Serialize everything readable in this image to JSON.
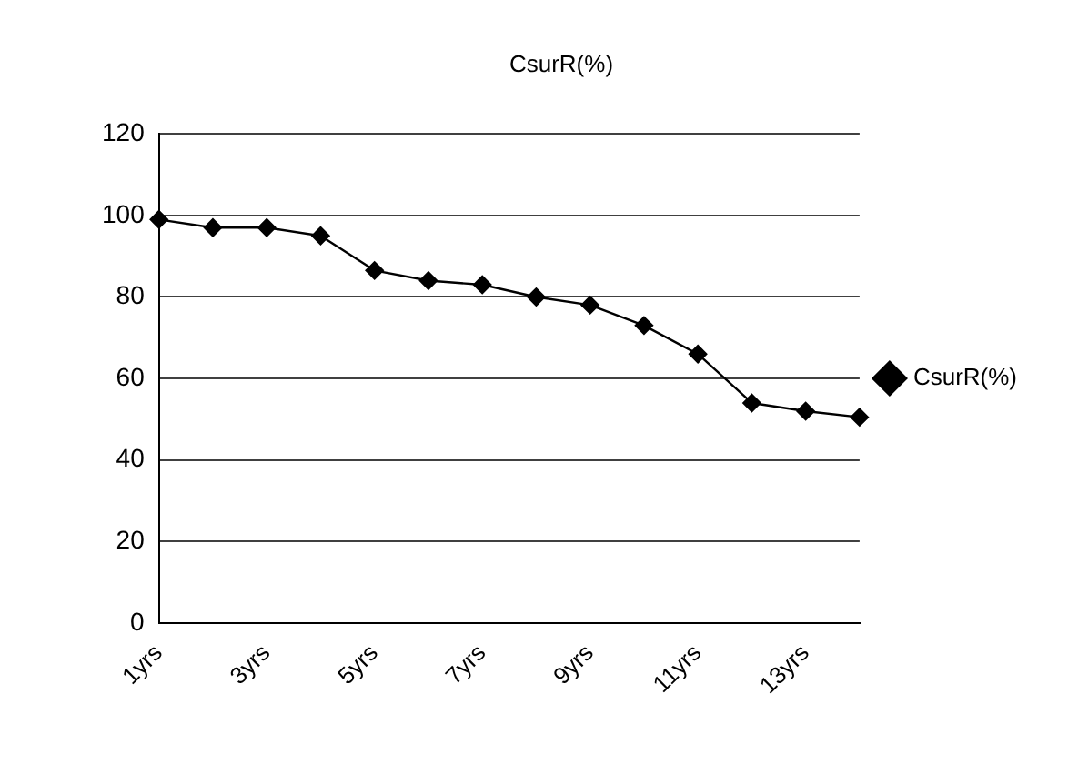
{
  "chart_data": {
    "type": "line",
    "title": "CsurR(%)",
    "categories": [
      "1yrs",
      null,
      "3yrs",
      null,
      "5yrs",
      null,
      "7yrs",
      null,
      "9yrs",
      null,
      "11yrs",
      null,
      "13yrs",
      null
    ],
    "series": [
      {
        "name": "CsurR(%)",
        "color": "#000000",
        "values": [
          99,
          97,
          97,
          95,
          86.5,
          84,
          83,
          80,
          78,
          73,
          66,
          54,
          52,
          50.5
        ]
      }
    ],
    "ylim": [
      0,
      120
    ],
    "yticks": [
      0,
      20,
      40,
      60,
      80,
      100,
      120
    ],
    "grid": "y",
    "legend": "right",
    "marker": "diamond",
    "line_style": "solid"
  }
}
